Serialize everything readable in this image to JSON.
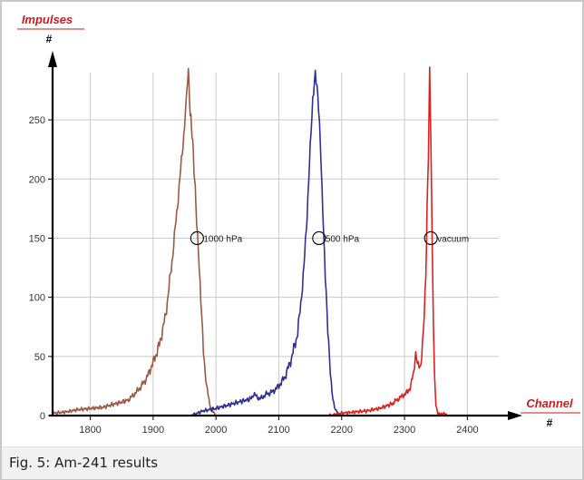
{
  "caption": "Fig. 5: Am-241 results",
  "chart_data": {
    "type": "line",
    "title": "",
    "ylabel": "Impulses",
    "ylabel_unit": "#",
    "xlabel": "Channel",
    "xlabel_unit": "#",
    "xlim": [
      1740,
      2450
    ],
    "ylim": [
      0,
      290
    ],
    "xticks": [
      1800,
      1900,
      2000,
      2100,
      2200,
      2300,
      2400
    ],
    "yticks": [
      0,
      50,
      100,
      150,
      200,
      250
    ],
    "grid": true,
    "series": [
      {
        "name": "1000 hPa",
        "color": "#9b5a44",
        "x": [
          1740,
          1760,
          1780,
          1800,
          1820,
          1840,
          1860,
          1870,
          1880,
          1890,
          1900,
          1910,
          1920,
          1930,
          1940,
          1945,
          1950,
          1953,
          1956,
          1959,
          1962,
          1965,
          1968,
          1972,
          1976,
          1980,
          1985,
          1990,
          1995,
          2000
        ],
        "y": [
          2,
          3,
          5,
          6,
          7,
          10,
          13,
          18,
          24,
          32,
          45,
          60,
          85,
          130,
          185,
          215,
          245,
          270,
          292,
          255,
          240,
          210,
          180,
          140,
          95,
          55,
          25,
          10,
          3,
          0
        ]
      },
      {
        "name": "500 hPa",
        "color": "#2e3192",
        "x": [
          1960,
          1980,
          2000,
          2020,
          2040,
          2055,
          2060,
          2070,
          2080,
          2090,
          2100,
          2110,
          2120,
          2130,
          2135,
          2140,
          2145,
          2150,
          2154,
          2158,
          2162,
          2166,
          2170,
          2174,
          2178,
          2182,
          2186,
          2190,
          2195,
          2200
        ],
        "y": [
          0,
          4,
          6,
          9,
          12,
          14,
          18,
          14,
          18,
          20,
          25,
          33,
          48,
          70,
          95,
          125,
          170,
          225,
          268,
          292,
          270,
          230,
          175,
          120,
          70,
          35,
          15,
          5,
          1,
          0
        ]
      },
      {
        "name": "vacuum",
        "color": "#e02020",
        "x": [
          2180,
          2200,
          2220,
          2240,
          2260,
          2280,
          2290,
          2300,
          2305,
          2310,
          2315,
          2318,
          2322,
          2326,
          2330,
          2334,
          2336,
          2338,
          2340,
          2342,
          2344,
          2346,
          2348,
          2350,
          2352,
          2355,
          2360,
          2370
        ],
        "y": [
          0,
          2,
          3,
          4,
          6,
          10,
          14,
          18,
          20,
          25,
          38,
          52,
          45,
          40,
          68,
          120,
          175,
          220,
          292,
          230,
          150,
          80,
          30,
          10,
          3,
          1,
          2,
          0
        ]
      }
    ],
    "annotations": [
      {
        "text": "1000 hPa",
        "x": 1970,
        "y": 150
      },
      {
        "text": "500 hPa",
        "x": 2164,
        "y": 150
      },
      {
        "text": "vacuum",
        "x": 2342,
        "y": 150
      }
    ]
  }
}
